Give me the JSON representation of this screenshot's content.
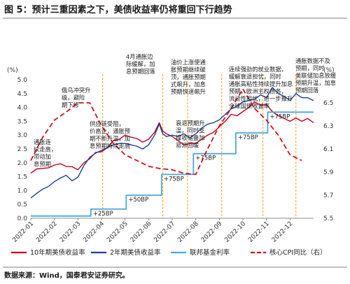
{
  "chart_data": {
    "type": "line",
    "title": "图 5：预计三重因素之下，美债收益率仍将重回下行趋势",
    "y_left": {
      "unit": "(%)",
      "ylim": [
        0.0,
        5.0
      ],
      "ticks": [
        "0.0",
        "0.5",
        "1.0",
        "1.5",
        "2.0",
        "2.5",
        "3.0",
        "3.5",
        "4.0",
        "4.5",
        "5.0"
      ]
    },
    "y_right": {
      "unit": "(%)",
      "ylim": [
        5.5,
        6.7
      ],
      "ticks": [
        "5.5",
        "5.7",
        "5.9",
        "6.1",
        "6.3",
        "6.5"
      ]
    },
    "x_ticks": [
      "2022-01",
      "2022-02",
      "2022-03",
      "2022-04",
      "2022-05",
      "2022-06",
      "2022-07",
      "2022-08",
      "2022-09",
      "2022-10",
      "2022-11",
      "2022-12"
    ],
    "series": [
      {
        "name": "10年期美债收益率",
        "axis": "left",
        "color": "#c0001c",
        "style": "solid",
        "points": [
          [
            0,
            1.63
          ],
          [
            0.25,
            1.78
          ],
          [
            0.5,
            1.8
          ],
          [
            0.75,
            1.82
          ],
          [
            1.0,
            1.92
          ],
          [
            1.25,
            1.97
          ],
          [
            1.5,
            1.87
          ],
          [
            1.75,
            1.86
          ],
          [
            2.0,
            1.75
          ],
          [
            2.25,
            2.0
          ],
          [
            2.5,
            2.15
          ],
          [
            2.75,
            2.38
          ],
          [
            3.0,
            2.4
          ],
          [
            3.25,
            2.55
          ],
          [
            3.5,
            2.8
          ],
          [
            3.75,
            2.85
          ],
          [
            4.0,
            3.0
          ],
          [
            4.25,
            2.93
          ],
          [
            4.5,
            2.88
          ],
          [
            4.75,
            2.75
          ],
          [
            5.0,
            2.85
          ],
          [
            5.25,
            3.1
          ],
          [
            5.45,
            3.45
          ],
          [
            5.6,
            3.15
          ],
          [
            5.75,
            3.05
          ],
          [
            6.0,
            2.95
          ],
          [
            6.25,
            2.8
          ],
          [
            6.5,
            2.65
          ],
          [
            6.75,
            2.7
          ],
          [
            7.0,
            2.7
          ],
          [
            7.25,
            2.85
          ],
          [
            7.5,
            3.0
          ],
          [
            7.75,
            3.1
          ],
          [
            8.0,
            3.3
          ],
          [
            8.25,
            3.5
          ],
          [
            8.5,
            3.75
          ],
          [
            8.75,
            3.7
          ],
          [
            9.0,
            3.85
          ],
          [
            9.25,
            4.0
          ],
          [
            9.5,
            4.2
          ],
          [
            9.75,
            4.08
          ],
          [
            10.0,
            4.1
          ],
          [
            10.25,
            3.85
          ],
          [
            10.5,
            3.7
          ],
          [
            10.75,
            3.6
          ],
          [
            11.0,
            3.5
          ],
          [
            11.25,
            3.62
          ],
          [
            11.5,
            3.5
          ],
          [
            11.75,
            3.6
          ],
          [
            12.0,
            3.45
          ]
        ]
      },
      {
        "name": "2年期美债收益率",
        "axis": "left",
        "color": "#1f3f99",
        "style": "solid",
        "points": [
          [
            0,
            0.73
          ],
          [
            0.25,
            0.9
          ],
          [
            0.5,
            1.05
          ],
          [
            0.75,
            1.15
          ],
          [
            1.0,
            1.32
          ],
          [
            1.25,
            1.45
          ],
          [
            1.5,
            1.55
          ],
          [
            1.75,
            1.35
          ],
          [
            2.0,
            1.48
          ],
          [
            2.25,
            1.9
          ],
          [
            2.5,
            2.2
          ],
          [
            2.75,
            2.35
          ],
          [
            3.0,
            2.45
          ],
          [
            3.25,
            2.55
          ],
          [
            3.5,
            2.65
          ],
          [
            3.75,
            2.7
          ],
          [
            4.0,
            2.7
          ],
          [
            4.25,
            2.65
          ],
          [
            4.5,
            2.6
          ],
          [
            4.75,
            2.5
          ],
          [
            5.0,
            2.65
          ],
          [
            5.25,
            3.0
          ],
          [
            5.45,
            3.4
          ],
          [
            5.6,
            3.05
          ],
          [
            5.75,
            2.95
          ],
          [
            6.0,
            3.0
          ],
          [
            6.25,
            2.95
          ],
          [
            6.5,
            3.05
          ],
          [
            6.75,
            2.9
          ],
          [
            7.0,
            3.05
          ],
          [
            7.25,
            3.25
          ],
          [
            7.5,
            3.4
          ],
          [
            7.75,
            3.45
          ],
          [
            8.0,
            3.55
          ],
          [
            8.25,
            3.75
          ],
          [
            8.5,
            3.95
          ],
          [
            8.75,
            4.05
          ],
          [
            9.0,
            4.2
          ],
          [
            9.25,
            4.25
          ],
          [
            9.5,
            4.3
          ],
          [
            9.75,
            4.45
          ],
          [
            10.0,
            4.35
          ],
          [
            10.25,
            4.72
          ],
          [
            10.5,
            4.5
          ],
          [
            10.75,
            4.4
          ],
          [
            11.0,
            4.25
          ],
          [
            11.25,
            4.5
          ],
          [
            11.5,
            4.35
          ],
          [
            11.75,
            4.35
          ],
          [
            12.0,
            4.25
          ]
        ]
      },
      {
        "name": "联邦基金利率",
        "axis": "left",
        "color": "#4aa8dc",
        "style": "step",
        "points": [
          [
            0,
            0.08
          ],
          [
            2.55,
            0.08
          ],
          [
            2.55,
            0.33
          ],
          [
            4.05,
            0.33
          ],
          [
            4.05,
            0.83
          ],
          [
            5.55,
            0.83
          ],
          [
            5.55,
            1.58
          ],
          [
            6.9,
            1.58
          ],
          [
            6.9,
            2.33
          ],
          [
            8.7,
            2.33
          ],
          [
            8.7,
            3.08
          ],
          [
            10.05,
            3.08
          ],
          [
            10.05,
            3.83
          ],
          [
            11.0,
            3.83
          ],
          [
            11.0,
            3.83
          ],
          [
            12.0,
            3.83
          ]
        ]
      },
      {
        "name": "核心CPI同比（右）",
        "axis": "right",
        "color": "#d0101c",
        "style": "dashed",
        "points": [
          [
            0,
            6.0
          ],
          [
            0.5,
            6.2
          ],
          [
            1.0,
            6.35
          ],
          [
            1.5,
            6.42
          ],
          [
            2.0,
            6.5
          ],
          [
            2.5,
            6.5
          ],
          [
            3.0,
            6.3
          ],
          [
            3.5,
            6.15
          ],
          [
            4.0,
            6.05
          ],
          [
            4.5,
            6.0
          ],
          [
            5.0,
            5.95
          ],
          [
            5.5,
            5.93
          ],
          [
            6.0,
            5.92
          ],
          [
            6.5,
            5.89
          ],
          [
            7.0,
            5.88
          ],
          [
            7.5,
            6.1
          ],
          [
            8.0,
            6.3
          ],
          [
            8.5,
            6.45
          ],
          [
            9.0,
            6.62
          ],
          [
            9.5,
            6.45
          ],
          [
            10.0,
            6.35
          ],
          [
            10.5,
            6.22
          ],
          [
            11.0,
            6.05
          ],
          [
            11.5,
            6.0
          ]
        ]
      }
    ],
    "rate_labels": [
      {
        "text": "+25BP",
        "x": 2.55,
        "y": 0.33
      },
      {
        "text": "+50BP",
        "x": 4.05,
        "y": 0.83
      },
      {
        "text": "+75BP",
        "x": 5.55,
        "y": 1.58
      },
      {
        "text": "+75BP",
        "x": 6.9,
        "y": 2.33
      },
      {
        "text": "+75BP",
        "x": 8.7,
        "y": 3.08
      },
      {
        "text": "+75BP",
        "x": 10.05,
        "y": 3.83
      }
    ],
    "event_lines": [
      3.05,
      5.6,
      6.65,
      8.1,
      9.85,
      11.25
    ],
    "annotations": [
      {
        "lines": [
          "通胀连",
          "续走高，",
          "带动加",
          "息预期"
        ]
      },
      {
        "lines": [
          "俄乌冲突升",
          "级，避险",
          "期下修"
        ]
      },
      {
        "lines": [
          "供应链受阻，",
          "价高企，通胀预",
          "期不断升温，加",
          "息预期持续走高"
        ]
      },
      {
        "lines": [
          "4月通胀边",
          "际缓解，加",
          "息预期回落"
        ]
      },
      {
        "lines": [
          "油价上涨使通",
          "胀预期继续破",
          "顶，通胀预期",
          "式飙升，加息",
          "预期快速飙升"
        ]
      },
      {
        "lines": [
          "衰退预期升",
          "温，同时支",
          "撑收储叠加",
          "易派回暖"
        ]
      },
      {
        "lines": [
          "连续强劲的就业数据，",
          "缓解衰退担忧，同时",
          "通胀高粘性持续提升加息",
          "预期，欧洲主权债务，",
          "流动性担忧，进一步推升",
          "全球国债收益率"
        ]
      },
      {
        "lines": [
          "通胀数据不及",
          "预期，同时",
          "美联储加息放缓",
          "预期升温，加息",
          "预期回落"
        ]
      }
    ],
    "legend": [
      "10年期美债收益率",
      "2年期美债收益率",
      "联邦基金利率",
      "核心CPI同比（右）"
    ],
    "source": "数据来源：Wind，国泰君安证券研究。"
  }
}
